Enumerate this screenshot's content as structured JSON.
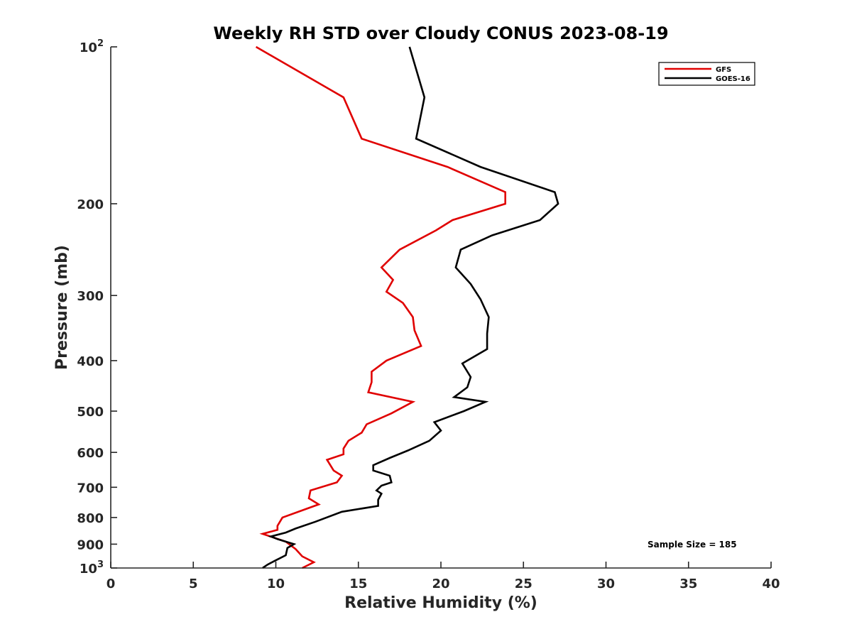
{
  "chart_data": {
    "type": "line",
    "title": "Weekly RH STD over Cloudy CONUS 2023-08-19",
    "xlabel": "Relative Humidity (%)",
    "ylabel": "Pressure (mb)",
    "xlim": [
      0,
      40
    ],
    "ylim": [
      100,
      1000
    ],
    "y_scale": "log",
    "y_reversed": true,
    "grid": false,
    "legend_position": "top-right",
    "x_ticks": [
      0,
      5,
      10,
      15,
      20,
      25,
      30,
      35,
      40
    ],
    "y_ticks": [
      {
        "value": 100,
        "base": "10",
        "exp": "2"
      },
      {
        "value": 200,
        "label": "200"
      },
      {
        "value": 300,
        "label": "300"
      },
      {
        "value": 400,
        "label": "400"
      },
      {
        "value": 500,
        "label": "500"
      },
      {
        "value": 600,
        "label": "600"
      },
      {
        "value": 700,
        "label": "700"
      },
      {
        "value": 800,
        "label": "800"
      },
      {
        "value": 900,
        "label": "900"
      },
      {
        "value": 1000,
        "base": "10",
        "exp": "3"
      }
    ],
    "annotation": "Sample Size = 185",
    "series": [
      {
        "name": "GFS",
        "color": "#e00000",
        "points": [
          [
            8.8,
            100
          ],
          [
            14.1,
            125
          ],
          [
            15.2,
            150
          ],
          [
            20.4,
            170
          ],
          [
            23.9,
            190
          ],
          [
            23.9,
            200
          ],
          [
            20.7,
            215
          ],
          [
            19.7,
            225
          ],
          [
            17.5,
            245
          ],
          [
            16.4,
            265
          ],
          [
            17.1,
            280
          ],
          [
            16.7,
            295
          ],
          [
            17.7,
            310
          ],
          [
            18.3,
            330
          ],
          [
            18.4,
            350
          ],
          [
            18.8,
            375
          ],
          [
            16.7,
            400
          ],
          [
            15.8,
            420
          ],
          [
            15.8,
            440
          ],
          [
            15.6,
            460
          ],
          [
            18.3,
            480
          ],
          [
            17.0,
            505
          ],
          [
            15.5,
            530
          ],
          [
            15.2,
            550
          ],
          [
            14.4,
            570
          ],
          [
            14.1,
            590
          ],
          [
            14.1,
            605
          ],
          [
            13.1,
            620
          ],
          [
            13.5,
            650
          ],
          [
            14.0,
            665
          ],
          [
            13.7,
            685
          ],
          [
            12.1,
            710
          ],
          [
            12.0,
            735
          ],
          [
            12.6,
            755
          ],
          [
            10.4,
            800
          ],
          [
            10.1,
            830
          ],
          [
            10.1,
            845
          ],
          [
            9.2,
            860
          ],
          [
            10.6,
            890
          ],
          [
            11.2,
            920
          ],
          [
            11.6,
            950
          ],
          [
            12.3,
            975
          ],
          [
            11.6,
            1000
          ]
        ]
      },
      {
        "name": "GOES-16",
        "color": "#000000",
        "points": [
          [
            18.1,
            100
          ],
          [
            19.0,
            125
          ],
          [
            18.5,
            150
          ],
          [
            22.4,
            170
          ],
          [
            26.9,
            190
          ],
          [
            27.1,
            200
          ],
          [
            26.0,
            215
          ],
          [
            23.1,
            230
          ],
          [
            21.2,
            245
          ],
          [
            20.9,
            265
          ],
          [
            21.8,
            285
          ],
          [
            22.4,
            305
          ],
          [
            22.9,
            330
          ],
          [
            22.8,
            355
          ],
          [
            22.8,
            380
          ],
          [
            21.3,
            405
          ],
          [
            21.8,
            430
          ],
          [
            21.6,
            450
          ],
          [
            20.8,
            470
          ],
          [
            22.7,
            480
          ],
          [
            21.4,
            500
          ],
          [
            19.6,
            525
          ],
          [
            20.0,
            545
          ],
          [
            19.3,
            570
          ],
          [
            18.0,
            595
          ],
          [
            16.9,
            615
          ],
          [
            15.9,
            635
          ],
          [
            15.9,
            650
          ],
          [
            16.9,
            665
          ],
          [
            17.0,
            685
          ],
          [
            16.4,
            695
          ],
          [
            16.1,
            710
          ],
          [
            16.4,
            720
          ],
          [
            16.2,
            740
          ],
          [
            16.2,
            760
          ],
          [
            14.0,
            780
          ],
          [
            12.4,
            815
          ],
          [
            11.2,
            840
          ],
          [
            10.6,
            855
          ],
          [
            9.7,
            870
          ],
          [
            10.1,
            880
          ],
          [
            11.1,
            900
          ],
          [
            10.7,
            915
          ],
          [
            10.6,
            945
          ],
          [
            9.9,
            970
          ],
          [
            9.5,
            985
          ],
          [
            9.2,
            1000
          ]
        ]
      }
    ]
  }
}
